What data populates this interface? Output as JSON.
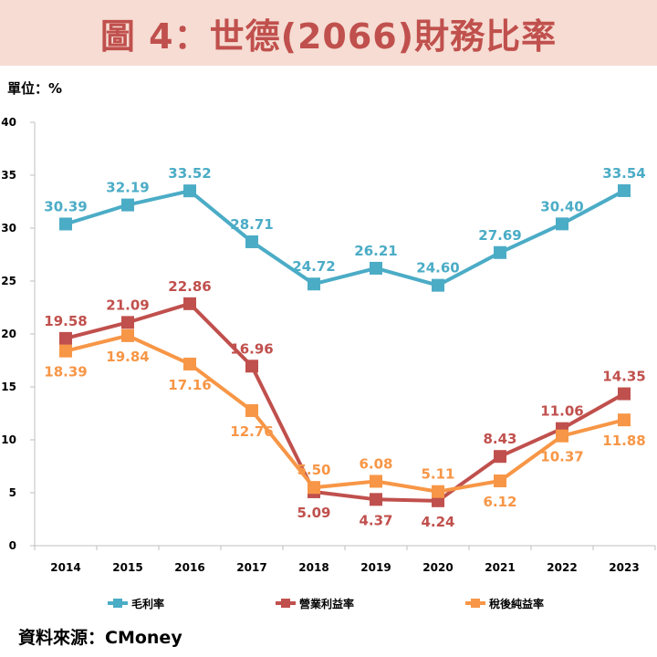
{
  "title": "圖 4：世德(2066)財務比率",
  "unit": "單位：%",
  "source": "資料來源：CMoney",
  "chart_data": {
    "type": "line",
    "title": "圖 4：世德(2066)財務比率",
    "xlabel": "",
    "ylabel": "單位：%",
    "ylim": [
      0,
      40
    ],
    "yticks": [
      "0",
      "5",
      "10",
      "15",
      "20",
      "25",
      "30",
      "35",
      "40"
    ],
    "categories": [
      "2014",
      "2015",
      "2016",
      "2017",
      "2018",
      "2019",
      "2020",
      "2021",
      "2022",
      "2023"
    ],
    "legend_position": "bottom",
    "series": [
      {
        "name": "毛利率",
        "color": "#4bacc6",
        "values": [
          30.39,
          32.19,
          33.52,
          28.71,
          24.72,
          26.21,
          24.6,
          27.69,
          30.4,
          33.54
        ],
        "labels": [
          "30.39",
          "32.19",
          "33.52",
          "28.71",
          "24.72",
          "26.21",
          "24.60",
          "27.69",
          "30.40",
          "33.54"
        ]
      },
      {
        "name": "營業利益率",
        "color": "#c0504d",
        "values": [
          19.58,
          21.09,
          22.86,
          16.96,
          5.09,
          4.37,
          4.24,
          8.43,
          11.06,
          14.35
        ],
        "labels": [
          "19.58",
          "21.09",
          "22.86",
          "16.96",
          "5.09",
          "4.37",
          "4.24",
          "8.43",
          "11.06",
          "14.35"
        ]
      },
      {
        "name": "稅後純益率",
        "color": "#f79646",
        "values": [
          18.39,
          19.84,
          17.16,
          12.76,
          5.5,
          6.08,
          5.11,
          6.12,
          10.37,
          11.88
        ],
        "labels": [
          "18.39",
          "19.84",
          "17.16",
          "12.76",
          "5.50",
          "6.08",
          "5.11",
          "6.12",
          "10.37",
          "11.88"
        ]
      }
    ]
  }
}
